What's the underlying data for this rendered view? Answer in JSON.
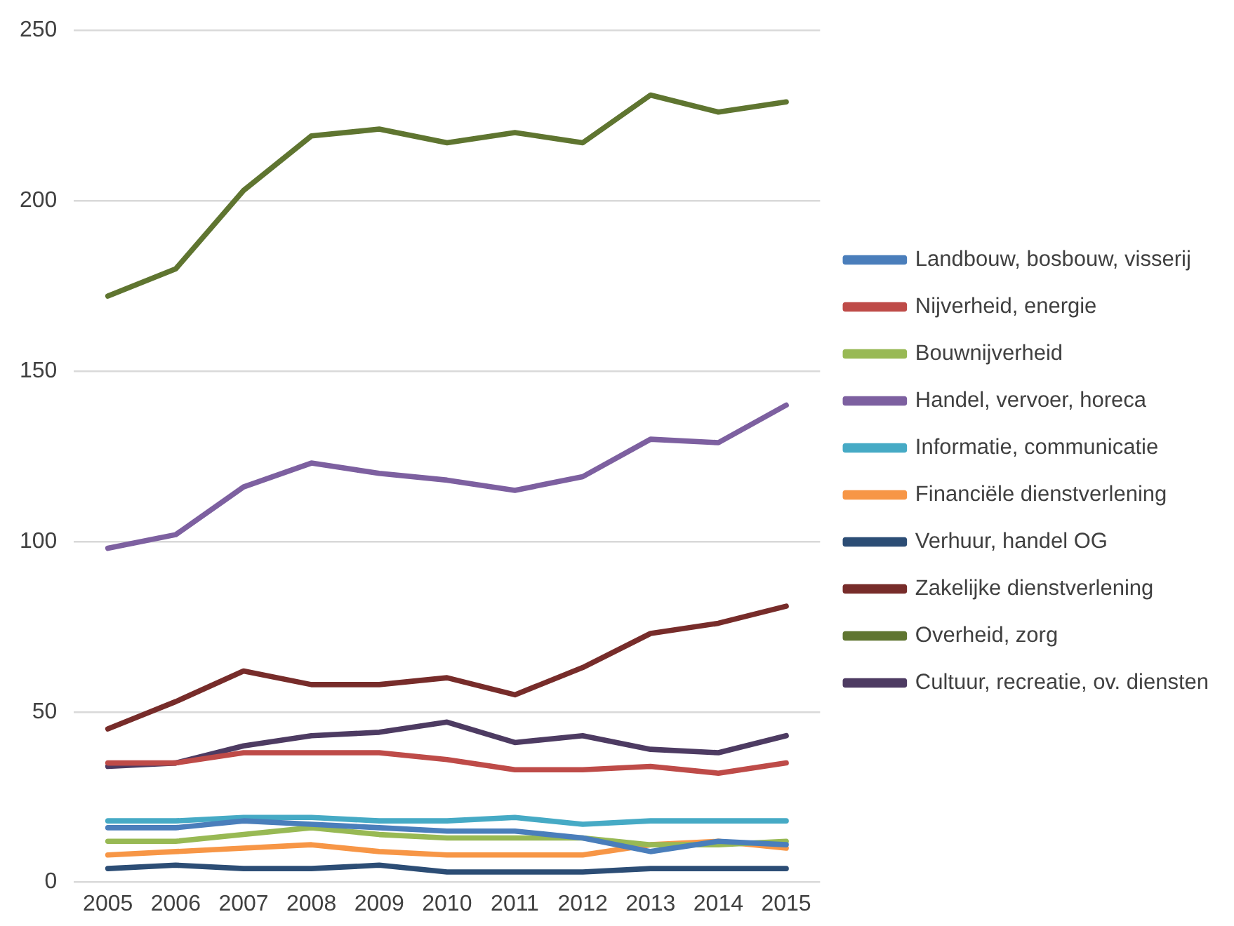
{
  "chart_data": {
    "type": "line",
    "categories": [
      "2005",
      "2006",
      "2007",
      "2008",
      "2009",
      "2010",
      "2011",
      "2012",
      "2013",
      "2014",
      "2015"
    ],
    "series": [
      {
        "name": "Landbouw, bosbouw, visserij",
        "color": "#4a7ebb",
        "values": [
          16,
          16,
          18,
          17,
          16,
          15,
          15,
          13,
          9,
          12,
          11
        ]
      },
      {
        "name": "Nijverheid, energie",
        "color": "#be4b48",
        "values": [
          35,
          35,
          38,
          38,
          38,
          36,
          33,
          33,
          34,
          32,
          35
        ]
      },
      {
        "name": "Bouwnijverheid",
        "color": "#98b954",
        "values": [
          12,
          12,
          14,
          16,
          14,
          13,
          13,
          13,
          11,
          11,
          12
        ]
      },
      {
        "name": "Handel, vervoer, horeca",
        "color": "#7d60a0",
        "values": [
          98,
          102,
          116,
          123,
          120,
          118,
          115,
          119,
          130,
          129,
          140
        ]
      },
      {
        "name": "Informatie, communicatie",
        "color": "#46aac5",
        "values": [
          18,
          18,
          19,
          19,
          18,
          18,
          19,
          17,
          18,
          18,
          18
        ]
      },
      {
        "name": "Financiële dienstverlening",
        "color": "#f79646",
        "values": [
          8,
          9,
          10,
          11,
          9,
          8,
          8,
          8,
          11,
          12,
          10
        ]
      },
      {
        "name": "Verhuur, handel OG",
        "color": "#2c4d75",
        "values": [
          4,
          5,
          4,
          4,
          5,
          3,
          3,
          3,
          4,
          4,
          4
        ]
      },
      {
        "name": "Zakelijke dienstverlening",
        "color": "#772c2a",
        "values": [
          45,
          53,
          62,
          58,
          58,
          60,
          55,
          63,
          73,
          76,
          81
        ]
      },
      {
        "name": "Overheid, zorg",
        "color": "#5f7530",
        "values": [
          172,
          180,
          203,
          219,
          221,
          217,
          220,
          217,
          231,
          226,
          229
        ]
      },
      {
        "name": "Cultuur, recreatie, ov. diensten",
        "color": "#4d3b62",
        "values": [
          34,
          35,
          40,
          43,
          44,
          47,
          41,
          43,
          39,
          38,
          43
        ]
      }
    ],
    "ylim": [
      0,
      250
    ],
    "yticks": [
      0,
      50,
      100,
      150,
      200,
      250
    ],
    "grid": "y",
    "legend": "right",
    "marker": "none",
    "line_style": "solid"
  }
}
